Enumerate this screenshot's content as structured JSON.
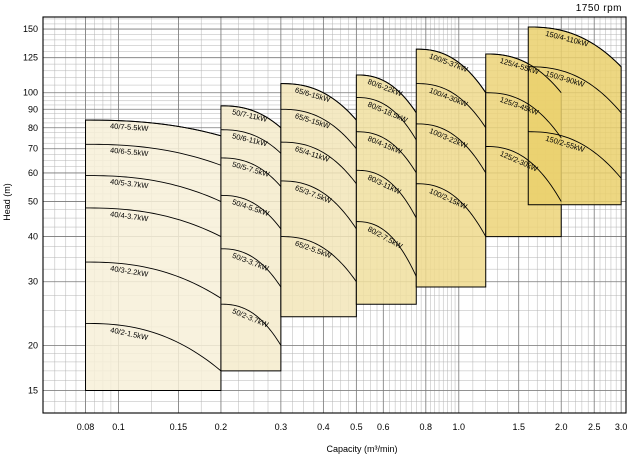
{
  "chart_data": {
    "type": "area",
    "title": "",
    "rpm_label": "1750 rpm",
    "xlabel": "Capacity (m³/min)",
    "ylabel": "Head (m)",
    "x_scale": "log",
    "y_scale": "log",
    "xlim": [
      0.06,
      3.1
    ],
    "ylim": [
      13,
      162
    ],
    "grid": true,
    "x_ticks": [
      "0.08",
      "0.1",
      "0.15",
      "0.2",
      "0.3",
      "0.4",
      "0.5",
      "0.6",
      "0.8",
      "1.0",
      "1.5",
      "2.0",
      "2.5",
      "3.0"
    ],
    "y_ticks": [
      "15",
      "20",
      "30",
      "40",
      "50",
      "60",
      "70",
      "80",
      "90",
      "100",
      "125",
      "150"
    ],
    "groups": [
      {
        "name": "40",
        "color": "#f7f0d8",
        "q_min": 0.08,
        "q_max": 0.2,
        "h_min": 15,
        "curves": [
          {
            "label": "40/7-5.5kW",
            "h_shutoff": 84,
            "h_end": 76
          },
          {
            "label": "40/6-5.5kW",
            "h_shutoff": 72,
            "h_end": 63
          },
          {
            "label": "40/5-3.7kW",
            "h_shutoff": 59,
            "h_end": 50
          },
          {
            "label": "40/4-3.7kW",
            "h_shutoff": 48,
            "h_end": 40
          },
          {
            "label": "40/3-2.2kW",
            "h_shutoff": 34,
            "h_end": 27
          },
          {
            "label": "40/2-1.5kW",
            "h_shutoff": 23,
            "h_end": 17
          }
        ]
      },
      {
        "name": "50",
        "color": "#f4ebcb",
        "q_min": 0.2,
        "q_max": 0.3,
        "h_min": 17,
        "curves": [
          {
            "label": "50/7-11kW",
            "h_shutoff": 92,
            "h_end": 80
          },
          {
            "label": "50/6-11kW",
            "h_shutoff": 79,
            "h_end": 68
          },
          {
            "label": "50/5-7.5kW",
            "h_shutoff": 66,
            "h_end": 55
          },
          {
            "label": "50/4-5.5kW",
            "h_shutoff": 52,
            "h_end": 42
          },
          {
            "label": "50/3-3.7kW",
            "h_shutoff": 37,
            "h_end": 29
          },
          {
            "label": "50/2-3.7kW",
            "h_shutoff": 26,
            "h_end": 20
          }
        ]
      },
      {
        "name": "65",
        "color": "#f2e5b8",
        "q_min": 0.3,
        "q_max": 0.5,
        "h_min": 24,
        "curves": [
          {
            "label": "65/6-15kW",
            "h_shutoff": 106,
            "h_end": 84
          },
          {
            "label": "65/5-15kW",
            "h_shutoff": 90,
            "h_end": 70
          },
          {
            "label": "65/4-11kW",
            "h_shutoff": 73,
            "h_end": 56
          },
          {
            "label": "65/3-7.5kW",
            "h_shutoff": 57,
            "h_end": 42
          },
          {
            "label": "65/2-5.5kW",
            "h_shutoff": 40,
            "h_end": 30
          }
        ]
      },
      {
        "name": "80",
        "color": "#f0df9f",
        "q_min": 0.5,
        "q_max": 0.75,
        "h_min": 26,
        "curves": [
          {
            "label": "80/6-22kW",
            "h_shutoff": 112,
            "h_end": 88
          },
          {
            "label": "80/5-18.5kW",
            "h_shutoff": 97,
            "h_end": 74
          },
          {
            "label": "80/4-15kW",
            "h_shutoff": 78,
            "h_end": 60
          },
          {
            "label": "80/3-11kW",
            "h_shutoff": 61,
            "h_end": 45
          },
          {
            "label": "80/2-7.5kW",
            "h_shutoff": 44,
            "h_end": 31
          }
        ]
      },
      {
        "name": "100",
        "color": "#eed98c",
        "q_min": 0.75,
        "q_max": 1.2,
        "h_min": 29,
        "curves": [
          {
            "label": "100/5-37kW",
            "h_shutoff": 132,
            "h_end": 100
          },
          {
            "label": "100/4-30kW",
            "h_shutoff": 106,
            "h_end": 80
          },
          {
            "label": "100/3-22kW",
            "h_shutoff": 82,
            "h_end": 60
          },
          {
            "label": "100/2-15kW",
            "h_shutoff": 56,
            "h_end": 40
          }
        ]
      },
      {
        "name": "125",
        "color": "#ecd478",
        "q_min": 1.2,
        "q_max": 2.0,
        "h_min": 40,
        "curves": [
          {
            "label": "125/4-55kW",
            "h_shutoff": 128,
            "h_end": 100
          },
          {
            "label": "125/3-45kW",
            "h_shutoff": 100,
            "h_end": 75
          },
          {
            "label": "125/2-30kW",
            "h_shutoff": 71,
            "h_end": 50
          }
        ]
      },
      {
        "name": "150",
        "color": "#ead06c",
        "q_min": 1.6,
        "q_max": 3.0,
        "h_min": 49,
        "curves": [
          {
            "label": "150/4-110kW",
            "h_shutoff": 152,
            "h_end": 118
          },
          {
            "label": "150/3-90kW",
            "h_shutoff": 118,
            "h_end": 88
          },
          {
            "label": "150/2-55kW",
            "h_shutoff": 78,
            "h_end": 58
          }
        ]
      }
    ]
  }
}
